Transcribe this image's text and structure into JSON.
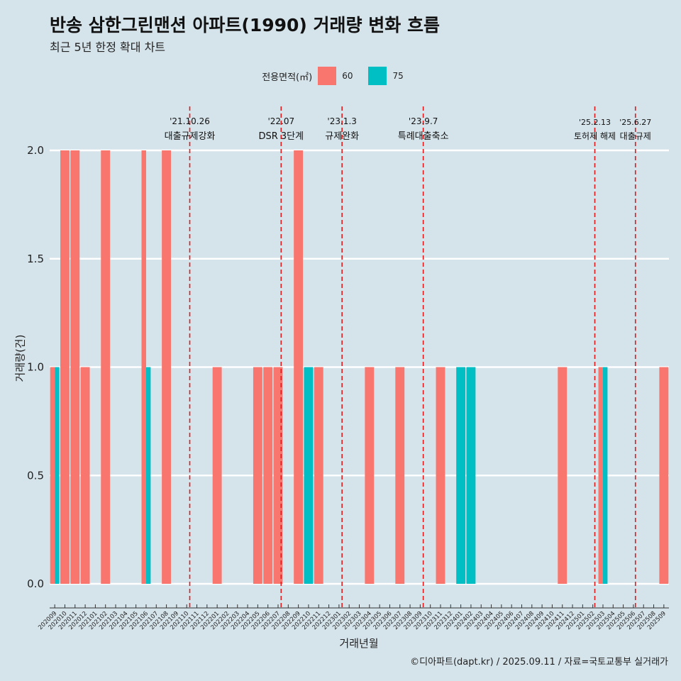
{
  "chart_data": {
    "type": "bar",
    "title": "반송 삼한그린맨션 아파트(1990) 거래량 변화 흐름",
    "subtitle": "최근 5년 한정 확대 차트",
    "xlabel": "거래년월",
    "ylabel": "거래량(건)",
    "ylim": [
      0,
      2.0
    ],
    "y_ticks": [
      "0.0",
      "0.5",
      "1.0",
      "1.5",
      "2.0"
    ],
    "grid": "horizontal",
    "legend": {
      "title": "전용면적(㎡)",
      "position": "top"
    },
    "categories": [
      "202009",
      "202010",
      "202011",
      "202012",
      "202101",
      "202102",
      "202103",
      "202104",
      "202105",
      "202106",
      "202107",
      "202108",
      "202109",
      "202110",
      "202111",
      "202112",
      "202201",
      "202202",
      "202203",
      "202204",
      "202205",
      "202206",
      "202207",
      "202208",
      "202209",
      "202210",
      "202211",
      "202212",
      "202301",
      "202302",
      "202303",
      "202304",
      "202305",
      "202306",
      "202307",
      "202308",
      "202309",
      "202310",
      "202311",
      "202312",
      "202401",
      "202402",
      "202403",
      "202404",
      "202405",
      "202406",
      "202407",
      "202408",
      "202409",
      "202410",
      "202411",
      "202412",
      "202501",
      "202502",
      "202503",
      "202504",
      "202505",
      "202506",
      "202507",
      "202508",
      "202509"
    ],
    "series": [
      {
        "name": "60",
        "color": "#f8766d",
        "values": [
          1,
          2,
          2,
          1,
          0,
          2,
          0,
          0,
          0,
          2,
          0,
          2,
          0,
          0,
          0,
          0,
          1,
          0,
          0,
          0,
          1,
          1,
          1,
          0,
          2,
          0,
          1,
          0,
          0,
          0,
          0,
          1,
          0,
          0,
          1,
          0,
          0,
          0,
          1,
          0,
          0,
          0,
          0,
          0,
          0,
          0,
          0,
          0,
          0,
          0,
          1,
          0,
          0,
          0,
          1,
          0,
          0,
          0,
          0,
          0,
          1
        ]
      },
      {
        "name": "75",
        "color": "#00bfc4",
        "values": [
          1,
          0,
          0,
          0,
          0,
          0,
          0,
          0,
          0,
          1,
          0,
          0,
          0,
          0,
          0,
          0,
          0,
          0,
          0,
          0,
          0,
          0,
          0,
          0,
          0,
          1,
          0,
          0,
          0,
          0,
          0,
          0,
          0,
          0,
          0,
          0,
          0,
          0,
          0,
          0,
          1,
          1,
          0,
          0,
          0,
          0,
          0,
          0,
          0,
          0,
          0,
          0,
          0,
          0,
          1,
          0,
          0,
          0,
          0,
          0,
          0
        ]
      }
    ],
    "events": [
      {
        "date": "'21.10.26",
        "label": "대출규제강화",
        "at": 13.8
      },
      {
        "date": "'22.07",
        "label": "DSR 3단계",
        "at": 22.8
      },
      {
        "date": "'23.1.3",
        "label": "규제완화",
        "at": 28.8
      },
      {
        "date": "'23.9.7",
        "label": "특례대출축소",
        "at": 36.8
      },
      {
        "date": "'25.2.13",
        "label": "토허제 해제",
        "at": 53.7
      },
      {
        "date": "'25.6.27",
        "label": "대출규제",
        "at": 57.7
      }
    ]
  },
  "caption": "©디아파트(dapt.kr) / 2025.09.11 / 자료=국토교통부 실거래가"
}
